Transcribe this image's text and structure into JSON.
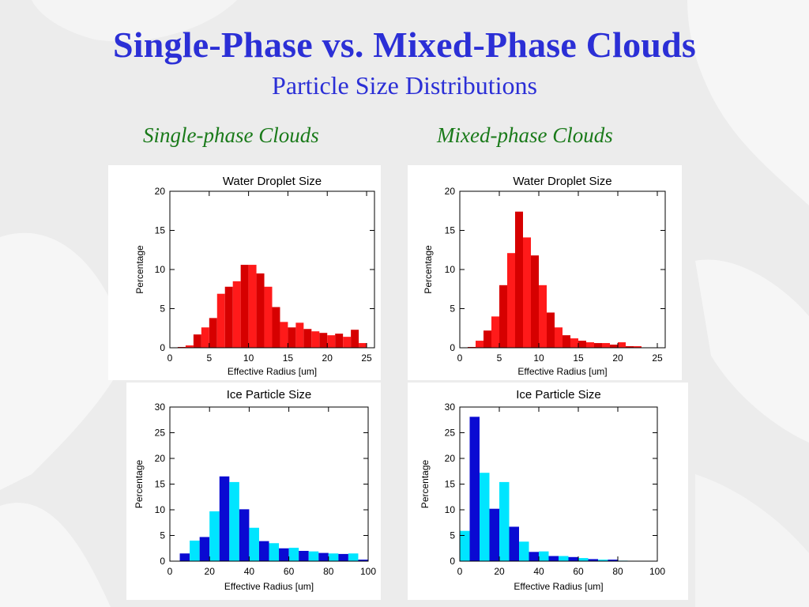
{
  "slide": {
    "title": "Single-Phase vs. Mixed-Phase Clouds",
    "subtitle": "Particle Size Distributions",
    "left_column": "Single-phase Clouds",
    "right_column": "Mixed-phase Clouds"
  },
  "colors": {
    "title": "#2b2fd6",
    "column_label": "#1a7a1a",
    "water_bar_a": "#d60000",
    "water_bar_b": "#ff1a1a",
    "ice_bar_a": "#00e5ff",
    "ice_bar_b": "#0a0ad2"
  },
  "chart_data": [
    {
      "type": "bar",
      "title": "Water Droplet Size",
      "xlabel": "Effective Radius [um]",
      "ylabel": "Percentage",
      "xlim": [
        0,
        26
      ],
      "ylim": [
        0,
        20
      ],
      "xticks": [
        0,
        5,
        10,
        15,
        20,
        25
      ],
      "yticks": [
        0,
        5,
        10,
        15,
        20
      ],
      "bin_width": 1,
      "bin_start": 1,
      "values": [
        0.1,
        0.3,
        1.7,
        2.6,
        3.8,
        6.9,
        7.8,
        8.5,
        10.6,
        10.6,
        9.5,
        7.8,
        5.2,
        3.3,
        2.6,
        3.2,
        2.4,
        2.1,
        1.9,
        1.6,
        1.8,
        1.4,
        2.3,
        0.6
      ],
      "colors": [
        "#d60000",
        "#ff1a1a"
      ],
      "grid": false
    },
    {
      "type": "bar",
      "title": "Water Droplet Size",
      "xlabel": "Effective Radius [um]",
      "ylabel": "Percentage",
      "xlim": [
        0,
        26
      ],
      "ylim": [
        0,
        20
      ],
      "xticks": [
        0,
        5,
        10,
        15,
        20,
        25
      ],
      "yticks": [
        0,
        5,
        10,
        15,
        20
      ],
      "bin_width": 1,
      "bin_start": 1,
      "values": [
        0.1,
        0.9,
        2.2,
        4.0,
        8.0,
        12.1,
        17.4,
        14.1,
        11.8,
        8.0,
        4.5,
        2.6,
        1.6,
        1.2,
        0.9,
        0.7,
        0.6,
        0.6,
        0.4,
        0.7,
        0.2,
        0.2
      ],
      "colors": [
        "#d60000",
        "#ff1a1a"
      ],
      "grid": false
    },
    {
      "type": "bar",
      "title": "Ice Particle Size",
      "xlabel": "Effective Radius [um]",
      "ylabel": "Percentage",
      "xlim": [
        0,
        100
      ],
      "ylim": [
        0,
        30
      ],
      "xticks": [
        0,
        20,
        40,
        60,
        80,
        100
      ],
      "yticks": [
        0,
        5,
        10,
        15,
        20,
        25,
        30
      ],
      "bin_width": 5,
      "bin_start": 5,
      "values": [
        1.5,
        4.0,
        4.7,
        9.7,
        16.5,
        15.4,
        10.1,
        6.5,
        3.9,
        3.5,
        2.5,
        2.6,
        2.0,
        1.9,
        1.6,
        1.5,
        1.4,
        1.5,
        0.3
      ],
      "colors": [
        "#0a0ad2",
        "#00e5ff"
      ],
      "grid": false
    },
    {
      "type": "bar",
      "title": "Ice Particle Size",
      "xlabel": "Effective Radius [um]",
      "ylabel": "Percentage",
      "xlim": [
        0,
        100
      ],
      "ylim": [
        0,
        30
      ],
      "xticks": [
        0,
        20,
        40,
        60,
        80,
        100
      ],
      "yticks": [
        0,
        5,
        10,
        15,
        20,
        25,
        30
      ],
      "bin_width": 5,
      "bin_start": 0,
      "values": [
        5.9,
        28.1,
        17.2,
        10.2,
        15.4,
        6.7,
        3.8,
        1.8,
        1.9,
        1.0,
        1.0,
        0.8,
        0.6,
        0.4,
        0.3,
        0.3,
        0.1
      ],
      "colors": [
        "#00e5ff",
        "#0a0ad2"
      ],
      "grid": false
    }
  ]
}
